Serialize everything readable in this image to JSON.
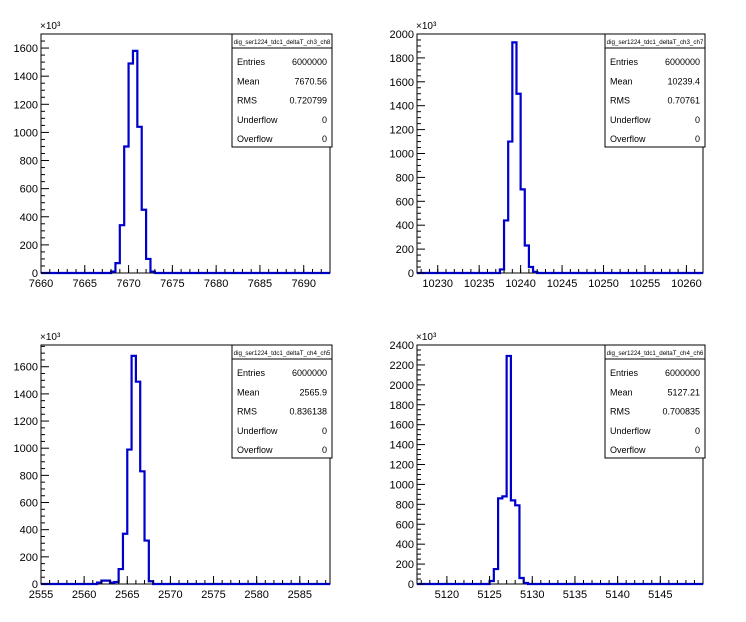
{
  "chart_data": [
    {
      "type": "histogram",
      "exponent_label": "×10³",
      "y_unit_scale": 1000,
      "xlim": [
        7660,
        7693
      ],
      "ylim": [
        0,
        1700
      ],
      "x_ticks": [
        7660,
        7665,
        7670,
        7675,
        7680,
        7685,
        7690
      ],
      "x_minor_step": 1,
      "y_ticks": [
        0,
        200,
        400,
        600,
        800,
        1000,
        1200,
        1400,
        1600
      ],
      "y_tick_labels": [
        "0",
        "200",
        "400",
        "600",
        "800",
        "1000",
        "1200",
        "1400",
        "1600"
      ],
      "bin_width": 0.5,
      "bins_x": [
        7667.5,
        7668.0,
        7668.5,
        7669.0,
        7669.5,
        7670.0,
        7670.5,
        7671.0,
        7671.5,
        7672.0,
        7672.5
      ],
      "bins_y": [
        0,
        10,
        70,
        340,
        900,
        1490,
        1580,
        1040,
        450,
        100,
        10
      ],
      "stats": {
        "title": "dig_ser1224_tdc1_deltaT_ch3_ch8",
        "rows": [
          {
            "label": "Entries",
            "value": "6000000"
          },
          {
            "label": "Mean",
            "value": "7670.56"
          },
          {
            "label": "RMS",
            "value": "0.720799"
          },
          {
            "label": "Underflow",
            "value": "0"
          },
          {
            "label": "Overflow",
            "value": "0"
          }
        ]
      }
    },
    {
      "type": "histogram",
      "exponent_label": "×10³",
      "y_unit_scale": 1000,
      "xlim": [
        10227.5,
        10262
      ],
      "ylim": [
        0,
        2000
      ],
      "x_ticks": [
        10230,
        10235,
        10240,
        10245,
        10250,
        10255,
        10260
      ],
      "x_minor_step": 1,
      "y_ticks": [
        0,
        200,
        400,
        600,
        800,
        1000,
        1200,
        1400,
        1600,
        1800,
        2000
      ],
      "y_tick_labels": [
        "0",
        "200",
        "400",
        "600",
        "800",
        "1000",
        "1200",
        "1400",
        "1600",
        "1800",
        "2000"
      ],
      "bin_width": 0.5,
      "bins_x": [
        10237.0,
        10237.5,
        10238.0,
        10238.5,
        10239.0,
        10239.5,
        10240.0,
        10240.5,
        10241.0,
        10241.5
      ],
      "bins_y": [
        0,
        30,
        440,
        1100,
        1930,
        1500,
        700,
        230,
        50,
        10
      ],
      "stats": {
        "title": "dig_ser1224_tdc1_deltaT_ch3_ch7",
        "rows": [
          {
            "label": "Entries",
            "value": "6000000"
          },
          {
            "label": "Mean",
            "value": "10239.4"
          },
          {
            "label": "RMS",
            "value": "0.70761"
          },
          {
            "label": "Underflow",
            "value": "0"
          },
          {
            "label": "Overflow",
            "value": "0"
          }
        ]
      }
    },
    {
      "type": "histogram",
      "exponent_label": "×10³",
      "y_unit_scale": 1000,
      "xlim": [
        2555,
        2588.5
      ],
      "ylim": [
        0,
        1760
      ],
      "x_ticks": [
        2555,
        2560,
        2565,
        2570,
        2575,
        2580,
        2585
      ],
      "x_minor_step": 1,
      "y_ticks": [
        0,
        200,
        400,
        600,
        800,
        1000,
        1200,
        1400,
        1600
      ],
      "y_tick_labels": [
        "0",
        "200",
        "400",
        "600",
        "800",
        "1000",
        "1200",
        "1400",
        "1600"
      ],
      "bin_width": 0.5,
      "bins_x": [
        2561.5,
        2562.0,
        2562.5,
        2563.0,
        2563.5,
        2564.0,
        2564.5,
        2565.0,
        2565.5,
        2566.0,
        2566.5,
        2567.0,
        2567.5
      ],
      "bins_y": [
        10,
        25,
        25,
        10,
        15,
        110,
        370,
        990,
        1680,
        1490,
        830,
        320,
        20
      ],
      "stats": {
        "title": "dig_ser1224_tdc1_deltaT_ch4_ch5",
        "rows": [
          {
            "label": "Entries",
            "value": "6000000"
          },
          {
            "label": "Mean",
            "value": "2565.9"
          },
          {
            "label": "RMS",
            "value": "0.836138"
          },
          {
            "label": "Underflow",
            "value": "0"
          },
          {
            "label": "Overflow",
            "value": "0"
          }
        ]
      }
    },
    {
      "type": "histogram",
      "exponent_label": "×10³",
      "y_unit_scale": 1000,
      "xlim": [
        5116.5,
        5150
      ],
      "ylim": [
        0,
        2400
      ],
      "x_ticks": [
        5120,
        5125,
        5130,
        5135,
        5140,
        5145
      ],
      "x_minor_step": 1,
      "y_ticks": [
        0,
        200,
        400,
        600,
        800,
        1000,
        1200,
        1400,
        1600,
        1800,
        2000,
        2200,
        2400
      ],
      "y_tick_labels": [
        "0",
        "200",
        "400",
        "600",
        "800",
        "1000",
        "1200",
        "1400",
        "1600",
        "1800",
        "2000",
        "2200",
        "2400"
      ],
      "bin_width": 0.5,
      "bins_x": [
        5125.0,
        5125.5,
        5126.0,
        5126.5,
        5127.0,
        5127.5,
        5128.0,
        5128.5,
        5129.0
      ],
      "bins_y": [
        30,
        150,
        860,
        880,
        2290,
        840,
        790,
        60,
        10
      ],
      "stats": {
        "title": "dig_ser1224_tdc1_deltaT_ch4_ch6",
        "rows": [
          {
            "label": "Entries",
            "value": "6000000"
          },
          {
            "label": "Mean",
            "value": "5127.21"
          },
          {
            "label": "RMS",
            "value": "0.700835"
          },
          {
            "label": "Underflow",
            "value": "0"
          },
          {
            "label": "Overflow",
            "value": "0"
          }
        ]
      }
    }
  ],
  "style": {
    "line_color": "#0000cc",
    "axis_color": "#000000",
    "background": "#ffffff"
  }
}
